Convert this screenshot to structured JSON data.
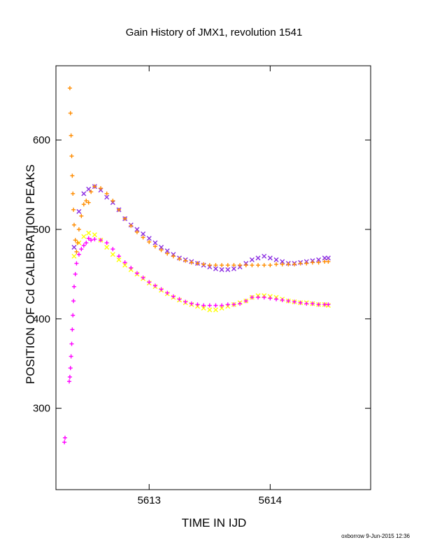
{
  "chart_data": {
    "type": "scatter",
    "title": "Gain History of JMX1, revolution 1541",
    "xlabel": "TIME IN IJD",
    "ylabel": "POSITION OF Cd CALIBRATION PEAKS",
    "xlim": [
      5612.23,
      5614.83
    ],
    "ylim": [
      209,
      683
    ],
    "xticks": [
      5613,
      5614
    ],
    "yticks": [
      300,
      400,
      500,
      600
    ],
    "grid": false,
    "legend": "none",
    "colors": {
      "purple": "#8a2be2",
      "yellow": "#ffff00",
      "orange": "#ff8c00",
      "magenta": "#ff00ff"
    },
    "series": [
      {
        "marker": "x",
        "color": "#8a2be2",
        "x": [
          5612.38,
          5612.42,
          5612.46,
          5612.5,
          5612.55,
          5612.6,
          5612.65,
          5612.7,
          5612.75,
          5612.8,
          5612.85,
          5612.9,
          5612.95,
          5613.0,
          5613.05,
          5613.1,
          5613.15,
          5613.2,
          5613.25,
          5613.3,
          5613.35,
          5613.4,
          5613.45,
          5613.5,
          5613.55,
          5613.6,
          5613.65,
          5613.7,
          5613.75,
          5613.8,
          5613.85,
          5613.9,
          5613.95,
          5614.0,
          5614.05,
          5614.1,
          5614.15,
          5614.2,
          5614.25,
          5614.3,
          5614.35,
          5614.4,
          5614.45,
          5614.48
        ],
        "y": [
          480,
          520,
          540,
          545,
          548,
          544,
          536,
          530,
          522,
          512,
          505,
          500,
          495,
          490,
          485,
          480,
          476,
          472,
          468,
          466,
          464,
          462,
          460,
          458,
          456,
          455,
          455,
          456,
          458,
          462,
          466,
          468,
          470,
          468,
          466,
          464,
          462,
          462,
          463,
          464,
          465,
          466,
          468,
          468
        ]
      },
      {
        "marker": "x",
        "color": "#ffff00",
        "x": [
          5612.38,
          5612.42,
          5612.46,
          5612.5,
          5612.55,
          5612.6,
          5612.65,
          5612.7,
          5612.75,
          5612.8,
          5612.85,
          5612.9,
          5612.95,
          5613.0,
          5613.05,
          5613.1,
          5613.15,
          5613.2,
          5613.25,
          5613.3,
          5613.35,
          5613.4,
          5613.45,
          5613.5,
          5613.55,
          5613.6,
          5613.65,
          5613.7,
          5613.75,
          5613.8,
          5613.85,
          5613.9,
          5613.95,
          5614.0,
          5614.05,
          5614.1,
          5614.15,
          5614.2,
          5614.25,
          5614.3,
          5614.35,
          5614.4,
          5614.45,
          5614.48
        ],
        "y": [
          470,
          485,
          492,
          496,
          494,
          488,
          480,
          472,
          466,
          460,
          455,
          450,
          445,
          440,
          436,
          432,
          428,
          424,
          421,
          418,
          416,
          414,
          412,
          410,
          410,
          412,
          414,
          416,
          418,
          420,
          424,
          426,
          426,
          425,
          424,
          422,
          420,
          419,
          418,
          418,
          417,
          416,
          416,
          415
        ]
      },
      {
        "marker": "+",
        "color": "#ff8c00",
        "x": [
          5612.345,
          5612.35,
          5612.355,
          5612.36,
          5612.365,
          5612.37,
          5612.375,
          5612.38,
          5612.39,
          5612.4,
          5612.41,
          5612.42,
          5612.44,
          5612.46,
          5612.48,
          5612.5,
          5612.52,
          5612.55,
          5612.6,
          5612.65,
          5612.7,
          5612.75,
          5612.8,
          5612.85,
          5612.9,
          5612.95,
          5613.0,
          5613.05,
          5613.1,
          5613.15,
          5613.2,
          5613.25,
          5613.3,
          5613.35,
          5613.4,
          5613.45,
          5613.5,
          5613.55,
          5613.6,
          5613.65,
          5613.7,
          5613.75,
          5613.8,
          5613.85,
          5613.9,
          5613.95,
          5614.0,
          5614.05,
          5614.1,
          5614.15,
          5614.2,
          5614.25,
          5614.3,
          5614.35,
          5614.4,
          5614.45,
          5614.48
        ],
        "y": [
          658,
          630,
          605,
          582,
          560,
          540,
          522,
          505,
          488,
          475,
          485,
          500,
          515,
          528,
          532,
          530,
          542,
          548,
          546,
          540,
          532,
          522,
          512,
          504,
          497,
          491,
          486,
          481,
          477,
          473,
          470,
          467,
          465,
          463,
          462,
          461,
          460,
          460,
          460,
          460,
          460,
          460,
          460,
          460,
          460,
          460,
          460,
          461,
          461,
          461,
          461,
          462,
          462,
          463,
          463,
          464,
          464
        ]
      },
      {
        "marker": "+",
        "color": "#ff00ff",
        "x": [
          5612.3,
          5612.305,
          5612.34,
          5612.345,
          5612.35,
          5612.355,
          5612.36,
          5612.365,
          5612.37,
          5612.375,
          5612.38,
          5612.39,
          5612.4,
          5612.42,
          5612.44,
          5612.46,
          5612.48,
          5612.5,
          5612.52,
          5612.55,
          5612.6,
          5612.65,
          5612.7,
          5612.75,
          5612.8,
          5612.85,
          5612.9,
          5612.95,
          5613.0,
          5613.05,
          5613.1,
          5613.15,
          5613.2,
          5613.25,
          5613.3,
          5613.35,
          5613.4,
          5613.45,
          5613.5,
          5613.55,
          5613.6,
          5613.65,
          5613.7,
          5613.75,
          5613.8,
          5613.85,
          5613.9,
          5613.95,
          5614.0,
          5614.05,
          5614.1,
          5614.15,
          5614.2,
          5614.25,
          5614.3,
          5614.35,
          5614.4,
          5614.45,
          5614.48
        ],
        "y": [
          262,
          267,
          330,
          335,
          345,
          358,
          372,
          388,
          404,
          420,
          436,
          450,
          462,
          472,
          478,
          482,
          485,
          490,
          488,
          489,
          488,
          485,
          478,
          470,
          463,
          457,
          451,
          446,
          441,
          437,
          433,
          429,
          425,
          422,
          419,
          417,
          416,
          415,
          415,
          415,
          415,
          416,
          416,
          417,
          420,
          424,
          424,
          424,
          423,
          422,
          421,
          420,
          419,
          418,
          417,
          417,
          416,
          416,
          416
        ]
      }
    ]
  },
  "footer": "oxborrow  9-Jun-2015 12:36"
}
